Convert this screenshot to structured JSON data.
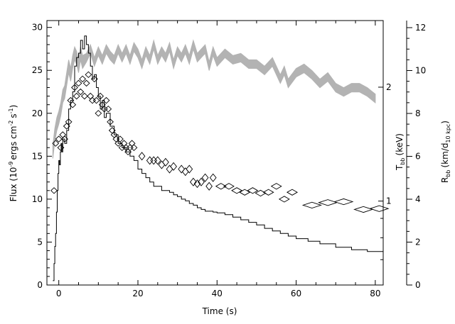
{
  "chart_data": {
    "type": "line",
    "xlabel": "Time (s)",
    "ylabel_main": "Flux (10",
    "ylabel_exp": "-9",
    "ylabel_units": "ergs cm",
    "ylabel_cm_exp": "-2",
    "ylabel_s": "s",
    "ylabel_s_exp": "-1",
    "ylabel_close": ")",
    "y2label": "T",
    "y2label_sub": "bb",
    "y2label_unit": "(keV)",
    "y3label": "R",
    "y3label_sub": "bb",
    "y3label_unit": "(km/d",
    "y3label_unit_sub": "10 kpc",
    "y3label_close": ")",
    "xlim": [
      -3,
      82
    ],
    "ylim": [
      0,
      30.8
    ],
    "x_ticks": [
      "0",
      "20",
      "40",
      "60",
      "80"
    ],
    "y_ticks": [
      "0",
      "5",
      "10",
      "15",
      "20",
      "25",
      "30"
    ],
    "temp_ticks": [
      "1",
      "2"
    ],
    "radius_ticks": [
      "0",
      "2",
      "4",
      "6",
      "8",
      "10",
      "12"
    ],
    "radius_lim": [
      0,
      12.33
    ],
    "grey_color": "#b3b3b3",
    "series": [
      {
        "role": "flux",
        "style": "step",
        "x": [
          -1.5,
          -1.2,
          -1.0,
          -0.8,
          -0.6,
          -0.4,
          -0.2,
          0.0,
          0.2,
          0.4,
          0.6,
          0.8,
          1.0,
          1.5,
          2.0,
          2.5,
          3.0,
          3.5,
          4.0,
          4.5,
          5.0,
          5.5,
          6.0,
          6.5,
          7.0,
          7.5,
          8.0,
          8.5,
          9.0,
          9.5,
          10.0,
          10.5,
          11.0,
          11.5,
          12.0,
          13.0,
          14.0,
          15.0,
          16.0,
          17.0,
          18.0,
          19.0,
          20.0,
          21.0,
          22.0,
          23.0,
          24.0,
          25.0,
          26.0,
          27.0,
          28.0,
          29.0,
          30.0,
          31.0,
          32.0,
          33.0,
          34.0,
          35.0,
          36.0,
          37.0,
          38.0,
          39.0,
          40.0,
          42.0,
          44.0,
          46.0,
          48.0,
          50.0,
          52.0,
          54.0,
          56.0,
          58.0,
          60.0,
          63.0,
          66.0,
          70.0,
          74.0,
          78.0,
          82.0
        ],
        "values": [
          0.5,
          2.5,
          4.5,
          6.0,
          8.5,
          11.0,
          13.0,
          14.5,
          14.0,
          15.5,
          16.5,
          15.5,
          17.0,
          16.5,
          18.0,
          20.5,
          21.5,
          22.5,
          25.5,
          26.5,
          27.0,
          28.5,
          27.5,
          29.0,
          28.0,
          27.0,
          25.5,
          24.0,
          24.5,
          23.0,
          22.0,
          20.5,
          21.5,
          19.5,
          20.0,
          18.5,
          17.5,
          16.5,
          16.0,
          15.5,
          15.0,
          14.5,
          13.5,
          13.0,
          12.5,
          12.0,
          11.5,
          11.5,
          11.0,
          11.0,
          10.8,
          10.5,
          10.3,
          10.0,
          9.8,
          9.5,
          9.3,
          9.0,
          8.8,
          8.6,
          8.6,
          8.5,
          8.4,
          8.2,
          7.9,
          7.6,
          7.3,
          7.0,
          6.6,
          6.3,
          6.0,
          5.7,
          5.4,
          5.1,
          4.8,
          4.4,
          4.1,
          3.9,
          3.5
        ]
      },
      {
        "role": "radius",
        "style": "band",
        "x": [
          -1.5,
          -1.0,
          -0.5,
          0.0,
          0.5,
          1.0,
          1.5,
          2.0,
          2.5,
          3.0,
          3.5,
          4.0,
          4.5,
          5.0,
          5.5,
          6.0,
          7.0,
          8.0,
          9.0,
          10.0,
          11.0,
          12.0,
          13.0,
          14.0,
          15.0,
          16.0,
          17.0,
          18.0,
          19.0,
          20.0,
          21.0,
          22.0,
          23.0,
          24.0,
          25.0,
          26.0,
          27.0,
          28.0,
          29.0,
          30.0,
          31.0,
          32.0,
          33.0,
          34.0,
          35.0,
          36.0,
          37.0,
          38.0,
          39.0,
          40.0,
          42.0,
          44.0,
          46.0,
          48.0,
          50.0,
          52.0,
          54.0,
          56.0,
          57.0,
          58.0,
          60.0,
          62.0,
          64.0,
          66.0,
          68.0,
          70.0,
          72.0,
          74.0,
          76.0,
          78.0,
          80.0
        ],
        "values": [
          6.2,
          7.0,
          7.5,
          7.8,
          8.2,
          8.8,
          9.0,
          9.6,
          10.2,
          9.8,
          10.4,
          10.8,
          10.6,
          10.2,
          10.8,
          10.4,
          10.6,
          11.0,
          10.4,
          10.9,
          10.5,
          11.0,
          10.7,
          10.5,
          11.0,
          10.6,
          11.0,
          10.5,
          11.1,
          10.8,
          10.3,
          10.9,
          10.5,
          11.2,
          10.5,
          10.9,
          10.6,
          11.1,
          10.3,
          10.9,
          10.6,
          11.0,
          10.5,
          11.2,
          10.6,
          10.8,
          11.0,
          10.2,
          10.9,
          10.4,
          10.8,
          10.5,
          10.6,
          10.3,
          10.3,
          10.0,
          10.4,
          9.6,
          10.0,
          9.4,
          9.9,
          10.1,
          9.8,
          9.4,
          9.7,
          9.2,
          9.0,
          9.2,
          9.2,
          9.0,
          8.7
        ],
        "band_half_width": [
          0.3,
          0.3,
          0.3,
          0.3,
          0.3,
          0.3,
          0.3,
          0.3,
          0.3,
          0.3,
          0.3,
          0.3,
          0.3,
          0.3,
          0.3,
          0.3,
          0.2,
          0.2,
          0.2,
          0.2,
          0.2,
          0.2,
          0.2,
          0.2,
          0.2,
          0.2,
          0.2,
          0.2,
          0.2,
          0.2,
          0.2,
          0.2,
          0.2,
          0.2,
          0.2,
          0.2,
          0.2,
          0.2,
          0.2,
          0.2,
          0.2,
          0.2,
          0.2,
          0.2,
          0.2,
          0.2,
          0.2,
          0.2,
          0.2,
          0.2,
          0.2,
          0.2,
          0.2,
          0.2,
          0.2,
          0.2,
          0.2,
          0.2,
          0.2,
          0.2,
          0.2,
          0.2,
          0.2,
          0.2,
          0.2,
          0.2,
          0.2,
          0.2,
          0.2,
          0.2,
          0.2
        ]
      },
      {
        "role": "temperature",
        "style": "diamond",
        "unit_note": "plotted on flux scale",
        "x": [
          -1.2,
          -0.8,
          0.0,
          0.5,
          1.0,
          1.5,
          2.0,
          2.5,
          3.0,
          3.5,
          4.0,
          4.5,
          5.0,
          5.5,
          6.0,
          6.5,
          7.0,
          7.5,
          8.0,
          8.5,
          9.0,
          9.5,
          10.0,
          10.5,
          11.0,
          11.5,
          12.0,
          12.5,
          13.0,
          13.5,
          14.0,
          14.5,
          15.0,
          15.5,
          16.0,
          16.5,
          17.0,
          17.5,
          18.0,
          18.5,
          19.0,
          21.0,
          23.0,
          24.0,
          25.0,
          26.0,
          27.0,
          28.0,
          29.0,
          31.0,
          32.0,
          33.0,
          34.0,
          35.0,
          36.0,
          37.0,
          38.0,
          39.0,
          41.0,
          43.0,
          45.0,
          47.0,
          49.0,
          51.0,
          53.0,
          55.0,
          57.0,
          59.0,
          64.0,
          68.0,
          72.0,
          77.0,
          81.0
        ],
        "values": [
          11.0,
          16.5,
          17.0,
          16.0,
          17.5,
          17.0,
          18.5,
          19.0,
          21.5,
          21.0,
          23.0,
          22.0,
          23.5,
          22.5,
          24.0,
          22.0,
          23.5,
          24.5,
          22.0,
          21.5,
          24.0,
          21.5,
          20.0,
          22.0,
          21.0,
          20.5,
          21.5,
          20.5,
          19.0,
          18.0,
          17.5,
          17.0,
          16.5,
          17.0,
          16.0,
          16.5,
          16.0,
          15.5,
          16.0,
          16.5,
          16.0,
          15.0,
          14.5,
          14.5,
          14.5,
          14.0,
          14.3,
          13.5,
          13.8,
          13.5,
          13.2,
          13.5,
          12.0,
          11.8,
          12.0,
          12.5,
          11.5,
          12.5,
          11.5,
          11.5,
          11.0,
          10.8,
          11.0,
          10.7,
          10.8,
          11.5,
          10.0,
          10.8,
          9.3,
          9.6,
          9.7,
          8.8,
          8.9
        ],
        "diamond_width": [
          1.0,
          1.0,
          1.0,
          1.0,
          1.0,
          1.0,
          1.0,
          1.0,
          1.0,
          1.0,
          1.0,
          1.0,
          1.0,
          1.0,
          1.0,
          1.0,
          1.0,
          1.0,
          1.0,
          1.0,
          1.0,
          1.0,
          1.0,
          1.0,
          1.0,
          1.0,
          1.0,
          1.0,
          1.0,
          1.0,
          1.0,
          1.0,
          1.0,
          1.0,
          1.0,
          1.0,
          1.0,
          1.0,
          1.0,
          1.0,
          1.0,
          1.0,
          1.0,
          1.0,
          1.0,
          1.0,
          1.0,
          1.0,
          1.0,
          1.0,
          1.0,
          1.0,
          1.0,
          1.0,
          1.0,
          1.0,
          1.0,
          1.0,
          2.0,
          2.0,
          2.0,
          2.0,
          2.0,
          2.0,
          2.0,
          2.0,
          2.0,
          2.0,
          4.0,
          4.0,
          4.0,
          4.0,
          4.0
        ],
        "diamond_height": [
          0.6,
          0.6,
          0.6,
          0.6,
          0.6,
          0.6,
          0.6,
          0.6,
          0.6,
          0.6,
          0.6,
          0.6,
          0.6,
          0.6,
          0.6,
          0.6,
          0.6,
          0.6,
          0.6,
          0.6,
          0.6,
          0.6,
          0.6,
          0.6,
          0.6,
          0.6,
          0.6,
          0.6,
          0.6,
          0.6,
          0.6,
          0.6,
          0.6,
          0.6,
          0.6,
          0.6,
          0.6,
          0.6,
          0.6,
          0.6,
          0.6,
          0.8,
          0.8,
          0.8,
          0.8,
          0.8,
          0.8,
          0.8,
          0.8,
          0.8,
          0.8,
          0.8,
          0.8,
          0.8,
          0.8,
          0.8,
          0.8,
          0.8,
          0.6,
          0.6,
          0.6,
          0.6,
          0.6,
          0.6,
          0.6,
          0.6,
          0.6,
          0.6,
          0.6,
          0.6,
          0.6,
          0.6,
          0.6
        ]
      }
    ]
  }
}
